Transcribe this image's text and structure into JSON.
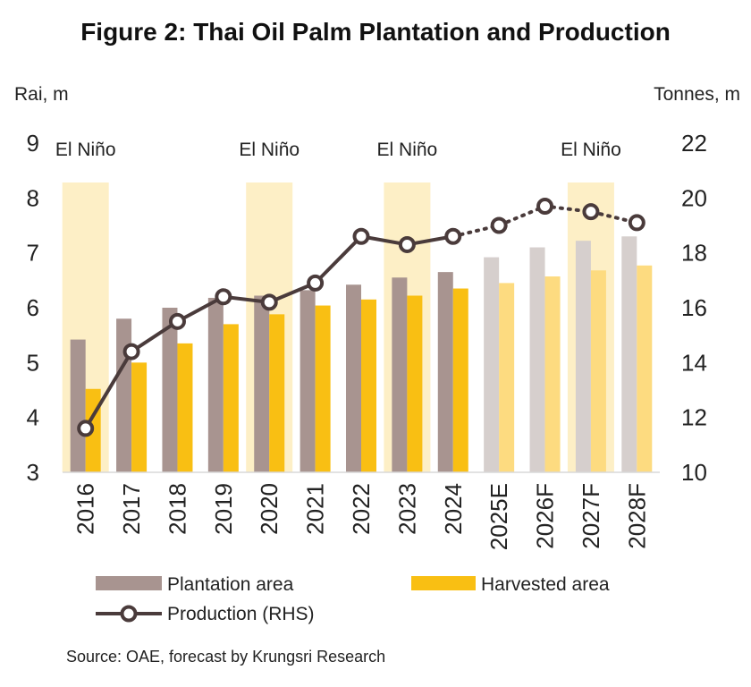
{
  "title": "Figure 2: Thai Oil Palm Plantation and Production",
  "source": "Source: OAE, forecast by Krungsri Research",
  "colors": {
    "plantation": "#a89490",
    "plantation_forecast": "#d6cfcd",
    "harvested": "#f9bf13",
    "harvested_forecast": "#fddb80",
    "production": "#4a3b3b",
    "el_nino": "#fdefc6"
  },
  "chart_data": {
    "type": "bar",
    "title": "Figure 2: Thai Oil Palm Plantation and Production",
    "ylabel": "Rai, m",
    "y2label": "Tonnes, m",
    "ylim": [
      3,
      9
    ],
    "y2lim": [
      10,
      22
    ],
    "yticks": [
      "3",
      "4",
      "5",
      "6",
      "7",
      "8",
      "9"
    ],
    "y2ticks": [
      "10",
      "12",
      "14",
      "16",
      "18",
      "20",
      "22"
    ],
    "categories": [
      "2016",
      "2017",
      "2018",
      "2019",
      "2020",
      "2021",
      "2022",
      "2023",
      "2024",
      "2025E",
      "2026F",
      "2027F",
      "2028F"
    ],
    "forecast_from_index": 9,
    "series": [
      {
        "name": "Plantation area",
        "axis": "left",
        "kind": "bar",
        "values": [
          5.42,
          5.8,
          6.0,
          6.18,
          6.22,
          6.32,
          6.42,
          6.55,
          6.65,
          6.92,
          7.1,
          7.22,
          7.3
        ]
      },
      {
        "name": "Harvested area",
        "axis": "left",
        "kind": "bar",
        "values": [
          4.52,
          5.0,
          5.35,
          5.7,
          5.88,
          6.04,
          6.15,
          6.22,
          6.35,
          6.45,
          6.57,
          6.68,
          6.77
        ]
      },
      {
        "name": "Production (RHS)",
        "axis": "right",
        "kind": "line",
        "values": [
          11.6,
          14.4,
          15.5,
          16.4,
          16.2,
          16.9,
          18.6,
          18.3,
          18.6,
          19.0,
          19.7,
          19.5,
          19.1
        ]
      }
    ],
    "annotations": [
      {
        "label": "El Niño",
        "categories": [
          "2016"
        ]
      },
      {
        "label": "El Niño",
        "categories": [
          "2020"
        ]
      },
      {
        "label": "El Niño",
        "categories": [
          "2023"
        ]
      },
      {
        "label": "El Niño",
        "categories": [
          "2027F"
        ]
      }
    ],
    "legend": [
      {
        "label": "Plantation area",
        "key": "plantation"
      },
      {
        "label": "Harvested area",
        "key": "harvested"
      },
      {
        "label": "Production (RHS)",
        "key": "production"
      }
    ],
    "legend_position": "bottom"
  }
}
